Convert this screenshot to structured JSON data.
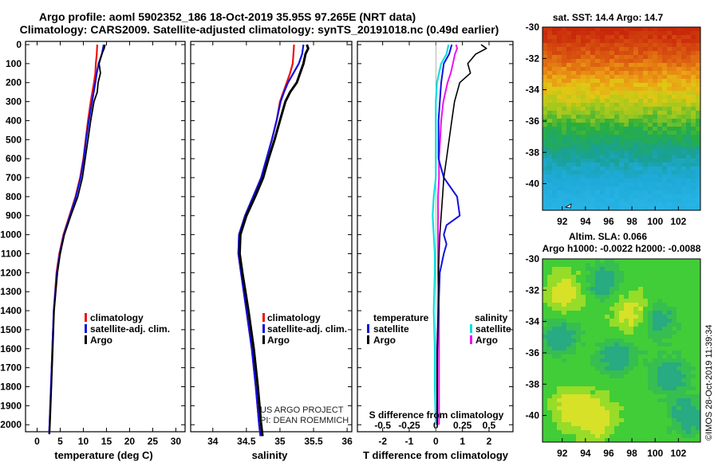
{
  "header": {
    "title_line1": "Argo profile: aoml 5902352_186 18-Oct-2019 35.95S 97.265E (NRT data)",
    "title_line2": "Climatology: CARS2009. Satellite-adjusted climatology: synTS_20191018.nc (0.49d earlier)"
  },
  "colors": {
    "climatology": "#ee1111",
    "satellite": "#1111dd",
    "argo": "#000000",
    "argo_salinity_diff": "#ee11ee",
    "satellite_salinity_diff": "#11dddd",
    "sst_warm": "#d23a10",
    "sst_mid": "#1fb34a",
    "sst_cool": "#1ea7d8",
    "sla_base": "#3cc83c"
  },
  "depth_axis": {
    "ticks": [
      "0",
      "100",
      "200",
      "300",
      "400",
      "500",
      "600",
      "700",
      "800",
      "900",
      "1000",
      "1100",
      "1200",
      "1300",
      "1400",
      "1500",
      "1600",
      "1700",
      "1800",
      "1900",
      "2000"
    ],
    "range": [
      0,
      2100
    ]
  },
  "chart_data": [
    {
      "type": "line",
      "id": "temperature",
      "xlabel": "temperature (deg C)",
      "xticks": [
        "0",
        "5",
        "10",
        "15",
        "20",
        "25",
        "30"
      ],
      "xtick_values": [
        0,
        5,
        10,
        15,
        20,
        25,
        30
      ],
      "xlim": [
        -2.5,
        32
      ],
      "legend": [
        "climatology",
        "satellite-adj. clim.",
        "Argo"
      ],
      "series": [
        {
          "name": "climatology",
          "depth": [
            0,
            50,
            100,
            150,
            200,
            300,
            400,
            500,
            600,
            700,
            800,
            900,
            1000,
            1100,
            1200,
            1400,
            1600,
            1800,
            2000,
            2050
          ],
          "values": [
            13.0,
            12.9,
            12.7,
            12.6,
            12.3,
            11.6,
            11.0,
            10.5,
            10.0,
            9.3,
            8.3,
            7.0,
            5.7,
            4.8,
            4.2,
            3.6,
            3.3,
            3.0,
            2.7,
            2.6
          ]
        },
        {
          "name": "satellite-adj. clim.",
          "depth": [
            0,
            50,
            100,
            150,
            200,
            300,
            400,
            500,
            600,
            700,
            800,
            900,
            1000,
            1100,
            1200,
            1400,
            1600,
            1800,
            2000,
            2050
          ],
          "values": [
            14.4,
            14.0,
            13.3,
            12.9,
            12.6,
            11.9,
            11.2,
            10.6,
            10.1,
            9.4,
            8.4,
            7.1,
            5.8,
            4.9,
            4.3,
            3.6,
            3.3,
            3.0,
            2.7,
            2.6
          ]
        },
        {
          "name": "Argo",
          "depth": [
            0,
            20,
            50,
            100,
            150,
            200,
            250,
            300,
            400,
            500,
            600,
            700,
            800,
            900,
            1000,
            1100,
            1200,
            1400,
            1600,
            1800,
            2000,
            2050
          ],
          "values": [
            14.7,
            14.5,
            14.0,
            13.4,
            13.7,
            13.2,
            13.0,
            12.3,
            11.6,
            11.0,
            10.4,
            9.8,
            8.8,
            7.3,
            5.9,
            5.0,
            4.4,
            3.7,
            3.4,
            3.1,
            2.8,
            2.7
          ]
        }
      ]
    },
    {
      "type": "line",
      "id": "salinity",
      "xlabel": "salinity",
      "xticks": [
        "34",
        "34.5",
        "35",
        "35.5",
        "36"
      ],
      "xtick_values": [
        34,
        34.5,
        35,
        35.5,
        36
      ],
      "xlim": [
        33.67,
        36.07
      ],
      "legend": [
        "climatology",
        "satellite-adj. clim.",
        "Argo"
      ],
      "series": [
        {
          "name": "climatology",
          "depth": [
            0,
            50,
            100,
            150,
            200,
            250,
            300,
            400,
            500,
            600,
            700,
            800,
            900,
            1000,
            1100,
            1200,
            1400,
            1600,
            1800,
            2000,
            2060
          ],
          "values": [
            35.21,
            35.2,
            35.19,
            35.15,
            35.1,
            35.05,
            35.0,
            34.95,
            34.88,
            34.8,
            34.72,
            34.6,
            34.48,
            34.39,
            34.38,
            34.42,
            34.5,
            34.58,
            34.64,
            34.69,
            34.71
          ]
        },
        {
          "name": "satellite-adj. clim.",
          "depth": [
            0,
            50,
            100,
            150,
            200,
            250,
            300,
            400,
            500,
            600,
            700,
            800,
            900,
            1000,
            1100,
            1200,
            1400,
            1600,
            1800,
            2000,
            2060
          ],
          "values": [
            35.35,
            35.33,
            35.28,
            35.2,
            35.12,
            35.06,
            35.01,
            34.95,
            34.88,
            34.8,
            34.72,
            34.6,
            34.48,
            34.39,
            34.38,
            34.42,
            34.5,
            34.58,
            34.64,
            34.69,
            34.71
          ]
        },
        {
          "name": "Argo",
          "depth": [
            0,
            20,
            50,
            100,
            150,
            200,
            250,
            300,
            400,
            500,
            600,
            700,
            800,
            900,
            1000,
            1100,
            1200,
            1400,
            1600,
            1800,
            2000,
            2060
          ],
          "values": [
            35.4,
            35.42,
            35.38,
            35.35,
            35.3,
            35.25,
            35.15,
            35.08,
            35.0,
            34.92,
            34.83,
            34.75,
            34.63,
            34.5,
            34.41,
            34.4,
            34.44,
            34.53,
            34.61,
            34.67,
            34.72,
            34.74
          ]
        }
      ]
    },
    {
      "type": "line",
      "id": "differences",
      "xlabel": "T difference from climatology",
      "xticks": [
        "-2",
        "-1",
        "0",
        "1",
        "2"
      ],
      "xtick_values": [
        -2,
        -1,
        0,
        1,
        2
      ],
      "top_label": "S difference from climatology",
      "top_ticks": [
        "-0.5",
        "-0.25",
        "0",
        "0.25",
        "0.5"
      ],
      "top_tick_values": [
        -0.5,
        -0.25,
        0,
        0.25,
        0.5
      ],
      "xlim": [
        -2.95,
        2.9
      ],
      "legend_temperature_title": "temperature",
      "legend_salinity_title": "salinity",
      "legend_temperature": [
        "satellite",
        "Argo"
      ],
      "legend_salinity": [
        "satellite",
        "Argo"
      ],
      "series": [
        {
          "name": "T satellite",
          "depth": [
            0,
            50,
            100,
            200,
            300,
            400,
            500,
            600,
            700,
            800,
            900,
            950,
            1000,
            1050,
            1100,
            1200,
            1400,
            1600,
            1800,
            2000
          ],
          "values": [
            0.6,
            0.5,
            0.3,
            0.2,
            0.15,
            0.1,
            0.1,
            0.1,
            0.3,
            0.8,
            0.9,
            0.4,
            0.3,
            0.4,
            0.3,
            0.15,
            0.1,
            0.05,
            0.05,
            0.05
          ]
        },
        {
          "name": "T Argo",
          "depth": [
            0,
            20,
            50,
            100,
            150,
            200,
            250,
            300,
            400,
            500,
            600,
            700,
            800,
            900,
            1000,
            1100,
            1200,
            1400,
            1600,
            1800,
            2000
          ],
          "values": [
            1.7,
            1.9,
            1.5,
            1.2,
            1.3,
            0.9,
            0.8,
            0.7,
            0.6,
            0.5,
            0.4,
            0.3,
            0.25,
            0.2,
            0.15,
            0.12,
            0.1,
            0.08,
            0.06,
            0.05,
            0.05
          ]
        },
        {
          "name": "S satellite",
          "depth": [
            0,
            50,
            100,
            150,
            200,
            300,
            400,
            500,
            600,
            700,
            800,
            900,
            1000,
            1100,
            1200,
            1400,
            1600,
            1800,
            2000
          ],
          "values": [
            0.12,
            0.1,
            0.05,
            0.03,
            0.01,
            0.0,
            0.0,
            0.0,
            0.0,
            0.0,
            -0.02,
            -0.03,
            -0.02,
            -0.01,
            -0.01,
            -0.02,
            -0.01,
            -0.01,
            0.0
          ]
        },
        {
          "name": "S Argo",
          "depth": [
            0,
            20,
            50,
            100,
            150,
            200,
            300,
            400,
            500,
            600,
            700,
            800,
            900,
            1000,
            1100,
            1200,
            1400,
            1600,
            1800,
            2000
          ],
          "values": [
            0.19,
            0.2,
            0.18,
            0.16,
            0.14,
            0.11,
            0.07,
            0.05,
            0.04,
            0.03,
            0.03,
            0.02,
            0.02,
            0.02,
            0.02,
            0.02,
            0.03,
            0.03,
            0.03,
            0.03
          ]
        }
      ]
    }
  ],
  "credits": {
    "project": "US ARGO PROJECT",
    "pi": "PI: DEAN ROEMMICH"
  },
  "sst_map": {
    "title": "sat. SST: 14.4 Argo: 14.7",
    "yticks": [
      "-30",
      "-32",
      "-34",
      "-36",
      "-38",
      "-40"
    ],
    "ytick_values": [
      -30,
      -32,
      -34,
      -36,
      -38,
      -40
    ],
    "xticks": [
      "92",
      "94",
      "96",
      "98",
      "100",
      "102"
    ],
    "xtick_values": [
      92,
      94,
      96,
      98,
      100,
      102
    ],
    "lon_range": [
      90.3,
      103.9
    ],
    "lat_range": [
      -30,
      -41.7
    ]
  },
  "sla_map": {
    "title_line1": "Altim. SLA: 0.066",
    "title_line2": "Argo h1000: -0.0022 h2000: -0.0088",
    "yticks": [
      "-30",
      "-32",
      "-34",
      "-36",
      "-38",
      "-40"
    ],
    "ytick_values": [
      -30,
      -32,
      -34,
      -36,
      -38,
      -40
    ],
    "xticks": [
      "92",
      "94",
      "96",
      "98",
      "100",
      "102"
    ],
    "xtick_values": [
      92,
      94,
      96,
      98,
      100,
      102
    ],
    "lon_range": [
      90.3,
      103.9
    ],
    "lat_range": [
      -30,
      -41.7
    ]
  },
  "timestamp": "©IMOS 28-Oct-2019 11:39:34"
}
